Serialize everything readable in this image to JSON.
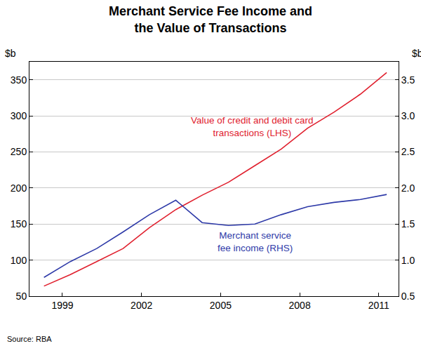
{
  "chart_data": {
    "type": "line",
    "title": "Merchant Service Fee Income and\nthe Value of Transactions",
    "ylabel": "$b",
    "y2label": "$b",
    "source": "Source: RBA",
    "x": [
      1998.3,
      1999.3,
      2000.3,
      2001.3,
      2002.3,
      2003.3,
      2004.3,
      2005.3,
      2006.3,
      2007.3,
      2008.3,
      2009.3,
      2010.3,
      2011.3
    ],
    "series": [
      {
        "name": "Value of credit and debit card\ntransactions (LHS)",
        "color": "#e0202e",
        "values": [
          64,
          80,
          98,
          116,
          145,
          170,
          190,
          208,
          231,
          254,
          283,
          305,
          330,
          360
        ]
      },
      {
        "name": "Merchant service\nfee income (RHS)",
        "color": "#2e3aa8",
        "axis": "y2",
        "values": [
          0.76,
          0.98,
          1.16,
          1.39,
          1.63,
          1.83,
          1.52,
          1.48,
          1.5,
          1.63,
          1.74,
          1.8,
          1.84,
          1.91
        ]
      }
    ],
    "xlim": [
      1997.75,
      2011.75
    ],
    "xticks": [
      1999,
      2002,
      2005,
      2008,
      2011
    ],
    "ylim": [
      50,
      375
    ],
    "yticks": [
      50,
      100,
      150,
      200,
      250,
      300,
      350
    ],
    "y2lim": [
      0.5,
      3.75
    ],
    "y2ticks": [
      {
        "value": 0.5,
        "label": "0.5"
      },
      {
        "value": 1,
        "label": "1.0"
      },
      {
        "value": 1.5,
        "label": "1.5"
      },
      {
        "value": 2,
        "label": "2.0"
      },
      {
        "value": 2.5,
        "label": "2.5"
      },
      {
        "value": 3,
        "label": "3.0"
      },
      {
        "value": 3.5,
        "label": "3.5"
      }
    ],
    "grid": true
  }
}
